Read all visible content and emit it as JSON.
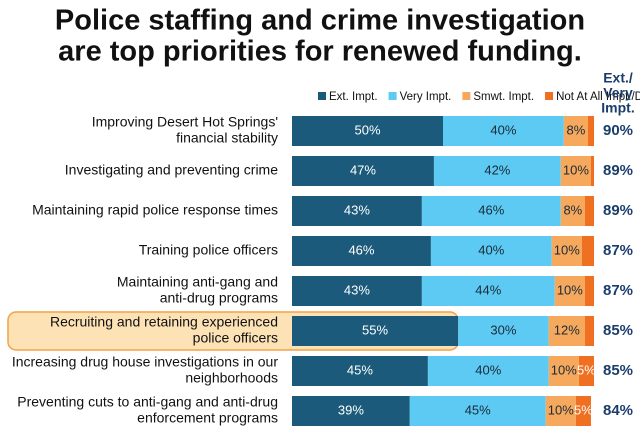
{
  "chart_data": {
    "type": "stacked_bar",
    "title": [
      "Police staffing and crime investigation",
      "are top priorities for renewed funding."
    ],
    "categories": [
      [
        "Improving Desert Hot Springs'",
        "financial stability"
      ],
      [
        "Investigating and preventing crime"
      ],
      [
        "Maintaining rapid police response times"
      ],
      [
        "Training police officers"
      ],
      [
        "Maintaining anti-gang and",
        "anti-drug programs"
      ],
      [
        "Recruiting and retaining experienced",
        "police officers"
      ],
      [
        "Increasing drug house investigations in our",
        "neighborhoods"
      ],
      [
        "Preventing cuts to anti-gang and anti-drug",
        "enforcement programs"
      ]
    ],
    "xlim": [
      0,
      100
    ],
    "highlight": 5,
    "series": [
      {
        "name": "Ext. Impt.",
        "color": "#1b5a7a",
        "label_color": "#ffffff",
        "values": [
          50,
          47,
          43,
          46,
          43,
          55,
          45,
          39
        ],
        "value_labels": [
          "50%",
          "47%",
          "43%",
          "46%",
          "43%",
          "55%",
          "45%",
          "39%"
        ]
      },
      {
        "name": "Very Impt.",
        "color": "#5ccaf2",
        "label_color": "#1a2a3a",
        "values": [
          40,
          42,
          46,
          40,
          44,
          30,
          40,
          45
        ],
        "value_labels": [
          "40%",
          "42%",
          "46%",
          "40%",
          "44%",
          "30%",
          "40%",
          "45%"
        ]
      },
      {
        "name": "Smwt. Impt.",
        "color": "#f6a95c",
        "label_color": "#1a2a3a",
        "values": [
          8,
          10,
          8,
          10,
          10,
          12,
          10,
          10
        ],
        "value_labels": [
          "8%",
          "10%",
          "8%",
          "10%",
          "10%",
          "12%",
          "10%",
          "10%"
        ]
      },
      {
        "name": "Not At All Impt./DK/NA",
        "color": "#f07022",
        "label_color": "#ffffff",
        "values": [
          2,
          1,
          3,
          4,
          3,
          3,
          5,
          5
        ],
        "value_labels": [
          null,
          null,
          null,
          null,
          null,
          null,
          "5%",
          "5%"
        ]
      }
    ],
    "totals": {
      "header": [
        "Ext./",
        "Very",
        "Impt."
      ],
      "values": [
        90,
        89,
        89,
        87,
        87,
        85,
        85,
        84
      ],
      "value_labels": [
        "90%",
        "89%",
        "89%",
        "87%",
        "87%",
        "85%",
        "85%",
        "84%"
      ]
    }
  }
}
